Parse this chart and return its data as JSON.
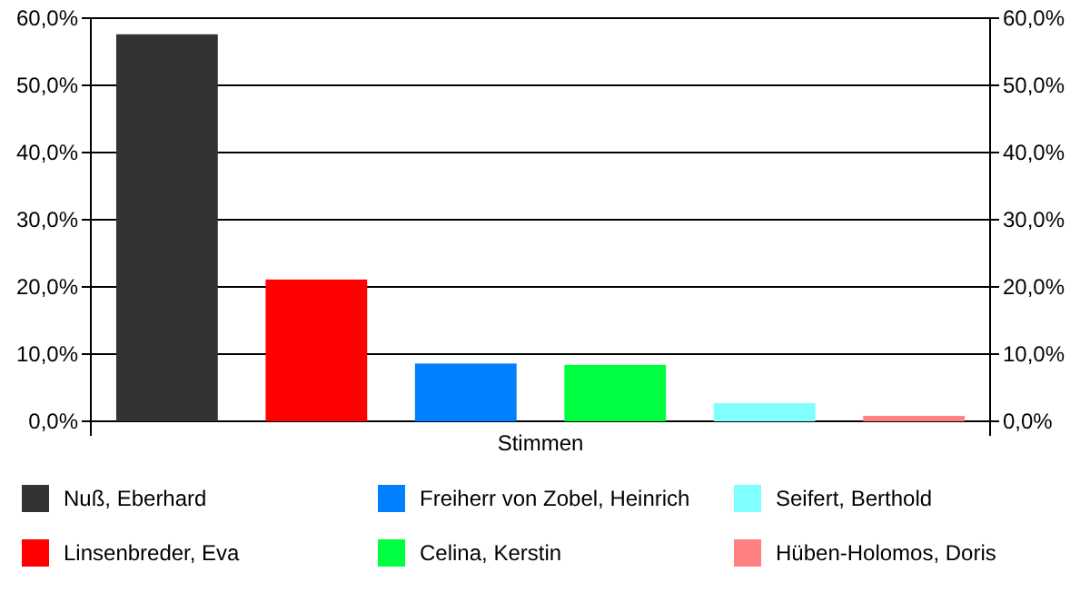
{
  "chart_data": {
    "type": "bar",
    "categories": [
      "Stimmen"
    ],
    "series": [
      {
        "name": "Nuß, Eberhard",
        "color": "#333333",
        "values": [
          57.6
        ]
      },
      {
        "name": "Linsenbreder, Eva",
        "color": "#ff0000",
        "values": [
          21.1
        ]
      },
      {
        "name": "Freiherr von Zobel, Heinrich",
        "color": "#0080ff",
        "values": [
          8.6
        ]
      },
      {
        "name": "Celina, Kerstin",
        "color": "#00ff40",
        "values": [
          8.4
        ]
      },
      {
        "name": "Seifert, Berthold",
        "color": "#80ffff",
        "values": [
          2.7
        ]
      },
      {
        "name": "Hüben-Holomos, Doris",
        "color": "#ff8080",
        "values": [
          0.8
        ]
      }
    ],
    "ylim": [
      0,
      60
    ],
    "yticks": [
      {
        "value": 0,
        "label": "0,0%"
      },
      {
        "value": 10,
        "label": "10,0%"
      },
      {
        "value": 20,
        "label": "20,0%"
      },
      {
        "value": 30,
        "label": "30,0%"
      },
      {
        "value": 40,
        "label": "40,0%"
      },
      {
        "value": 50,
        "label": "50,0%"
      },
      {
        "value": 60,
        "label": "60,0%"
      }
    ],
    "grid": "y",
    "legend": "bottom"
  }
}
